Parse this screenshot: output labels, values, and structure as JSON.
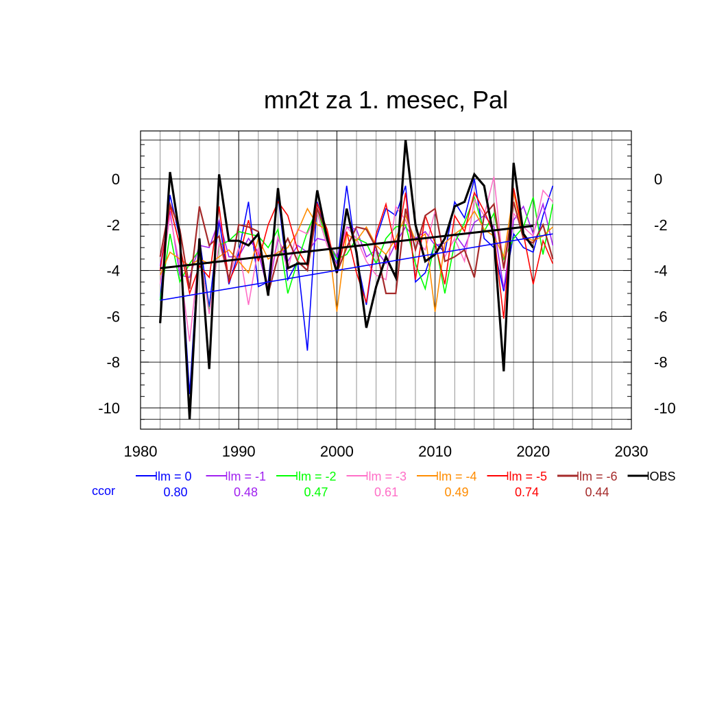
{
  "chart_data": {
    "type": "line",
    "title": "mn2t za 1. mesec, Pal",
    "xlabel": "",
    "ylabel": "",
    "xlim": [
      1980,
      2030
    ],
    "ylim": [
      -10.6,
      1.7
    ],
    "xticks": [
      1980,
      1990,
      2000,
      2010,
      2020,
      2030
    ],
    "yticks": [
      0,
      -2,
      -4,
      -6,
      -8,
      -10
    ],
    "grid": true,
    "ccor_label": "ccor",
    "series": [
      {
        "name": "lm = 0",
        "color": "#0000ff",
        "ccor": "0.80",
        "width": 1.6,
        "x": [
          1982,
          1983,
          1984,
          1985,
          1986,
          1987,
          1988,
          1989,
          1990,
          1991,
          1992,
          1993,
          1994,
          1995,
          1996,
          1997,
          1998,
          1999,
          2000,
          2001,
          2002,
          2003,
          2004,
          2005,
          2006,
          2007,
          2008,
          2009,
          2010,
          2011,
          2012,
          2013,
          2014,
          2015,
          2016,
          2017,
          2018,
          2019,
          2020,
          2021,
          2022
        ],
        "y": [
          -5.3,
          -0.7,
          -2.6,
          -9.4,
          -2.6,
          -5.6,
          -1.8,
          -4.6,
          -3.2,
          -1.0,
          -4.7,
          -4.5,
          -0.7,
          -4.4,
          -3.6,
          -7.5,
          -1.0,
          -2.5,
          -3.8,
          -0.3,
          -3.4,
          -5.5,
          -2.6,
          -1.3,
          -1.6,
          -0.3,
          -4.5,
          -4.1,
          -2.8,
          -3.2,
          -1.0,
          -1.7,
          -0.0,
          -2.6,
          -3.0,
          -4.9,
          -2.4,
          -3.0,
          -3.2,
          -1.6,
          -0.3
        ]
      },
      {
        "name": "lm = -1",
        "color": "#a020f0",
        "ccor": "0.48",
        "width": 1.6,
        "x": [
          1982,
          1983,
          1984,
          1985,
          1986,
          1987,
          1988,
          1989,
          1990,
          1991,
          1992,
          1993,
          1994,
          1995,
          1996,
          1997,
          1998,
          1999,
          2000,
          2001,
          2002,
          2003,
          2004,
          2005,
          2006,
          2007,
          2008,
          2009,
          2010,
          2011,
          2012,
          2013,
          2014,
          2015,
          2016,
          2017,
          2018,
          2019,
          2020,
          2021,
          2022
        ],
        "y": [
          -3.8,
          -1.4,
          -4.2,
          -4.3,
          -2.9,
          -3.0,
          -1.8,
          -3.4,
          -3.4,
          -2.6,
          -3.2,
          -4.9,
          -2.6,
          -3.6,
          -2.9,
          -3.2,
          -2.6,
          -2.7,
          -3.4,
          -2.1,
          -2.2,
          -3.4,
          -3.1,
          -3.7,
          -2.8,
          -2.1,
          -2.6,
          -2.3,
          -2.9,
          -2.8,
          -2.4,
          -3.0,
          -1.9,
          -1.6,
          -2.1,
          -4.8,
          -1.8,
          -1.2,
          -2.4,
          -1.1,
          -2.9
        ]
      },
      {
        "name": "lm = -2",
        "color": "#00ff00",
        "ccor": "0.47",
        "width": 1.6,
        "x": [
          1982,
          1983,
          1984,
          1985,
          1986,
          1987,
          1988,
          1989,
          1990,
          1991,
          1992,
          1993,
          1994,
          1995,
          1996,
          1997,
          1998,
          1999,
          2000,
          2001,
          2002,
          2003,
          2004,
          2005,
          2006,
          2007,
          2008,
          2009,
          2010,
          2011,
          2012,
          2013,
          2014,
          2015,
          2016,
          2017,
          2018,
          2019,
          2020,
          2021,
          2022
        ],
        "y": [
          -5.3,
          -2.4,
          -4.5,
          -3.7,
          -3.1,
          -5.8,
          -2.9,
          -2.7,
          -2.3,
          -2.4,
          -2.5,
          -3.0,
          -2.2,
          -5.0,
          -3.6,
          -2.3,
          -1.3,
          -2.7,
          -3.5,
          -3.3,
          -2.6,
          -2.8,
          -3.7,
          -2.6,
          -2.1,
          -2.0,
          -3.7,
          -4.8,
          -2.7,
          -5.0,
          -2.8,
          -1.9,
          -0.8,
          -2.3,
          -1.5,
          -3.5,
          -2.6,
          -2.1,
          -0.8,
          -3.3,
          -1.1
        ]
      },
      {
        "name": "lm = -3",
        "color": "#ff6ec7",
        "ccor": "0.61",
        "width": 1.6,
        "x": [
          1982,
          1983,
          1984,
          1985,
          1986,
          1987,
          1988,
          1989,
          1990,
          1991,
          1992,
          1993,
          1994,
          1995,
          1996,
          1997,
          1998,
          1999,
          2000,
          2001,
          2002,
          2003,
          2004,
          2005,
          2006,
          2007,
          2008,
          2009,
          2010,
          2011,
          2012,
          2013,
          2014,
          2015,
          2016,
          2017,
          2018,
          2019,
          2020,
          2021,
          2022
        ],
        "y": [
          -4.6,
          -1.6,
          -3.8,
          -7.1,
          -3.1,
          -5.9,
          -2.8,
          -4.3,
          -3.0,
          -5.5,
          -3.0,
          -4.7,
          -2.5,
          -4.0,
          -2.2,
          -2.4,
          -1.5,
          -2.9,
          -3.8,
          -2.1,
          -2.6,
          -3.6,
          -4.2,
          -4.4,
          -1.2,
          -1.8,
          -2.7,
          -3.1,
          -1.4,
          -3.4,
          -2.6,
          -3.6,
          -0.9,
          -1.6,
          0.1,
          -4.0,
          -1.5,
          -2.1,
          -2.5,
          -0.5,
          -1.0
        ]
      },
      {
        "name": "lm = -4",
        "color": "#ff8c00",
        "ccor": "0.49",
        "width": 1.6,
        "x": [
          1982,
          1983,
          1984,
          1985,
          1986,
          1987,
          1988,
          1989,
          1990,
          1991,
          1992,
          1993,
          1994,
          1995,
          1996,
          1997,
          1998,
          1999,
          2000,
          2001,
          2002,
          2003,
          2004,
          2005,
          2006,
          2007,
          2008,
          2009,
          2010,
          2011,
          2012,
          2013,
          2014,
          2015,
          2016,
          2017,
          2018,
          2019,
          2020,
          2021,
          2022
        ],
        "y": [
          -4.2,
          -3.2,
          -3.5,
          -3.8,
          -3.5,
          -3.7,
          -3.4,
          -3.1,
          -3.6,
          -4.1,
          -2.6,
          -3.5,
          -3.2,
          -3.0,
          -2.3,
          -1.3,
          -2.0,
          -2.2,
          -5.8,
          -2.4,
          -2.7,
          -2.1,
          -2.9,
          -3.3,
          -2.6,
          -1.6,
          -2.7,
          -2.4,
          -5.8,
          -2.8,
          -2.4,
          -2.1,
          -1.4,
          -2.2,
          -2.5,
          -3.4,
          -0.6,
          -2.5,
          -2.7,
          -2.5,
          -2.1
        ]
      },
      {
        "name": "lm = -5",
        "color": "#ff0000",
        "ccor": "0.74",
        "width": 1.6,
        "x": [
          1982,
          1983,
          1984,
          1985,
          1986,
          1987,
          1988,
          1989,
          1990,
          1991,
          1992,
          1993,
          1994,
          1995,
          1996,
          1997,
          1998,
          1999,
          2000,
          2001,
          2002,
          2003,
          2004,
          2005,
          2006,
          2007,
          2008,
          2009,
          2010,
          2011,
          2012,
          2013,
          2014,
          2015,
          2016,
          2017,
          2018,
          2019,
          2020,
          2021,
          2022
        ],
        "y": [
          -4.0,
          -1.2,
          -2.9,
          -5.0,
          -3.8,
          -4.3,
          -1.2,
          -4.5,
          -3.5,
          -1.8,
          -3.6,
          -2.0,
          -1.0,
          -1.6,
          -3.1,
          -3.8,
          -1.1,
          -2.2,
          -4.1,
          -2.3,
          -4.1,
          -5.4,
          -2.4,
          -1.1,
          -3.1,
          -0.6,
          -4.4,
          -1.6,
          -2.8,
          -4.6,
          -1.6,
          -2.3,
          -0.6,
          -1.4,
          -2.4,
          -6.1,
          -0.4,
          -2.4,
          -4.6,
          -2.7,
          -3.7
        ]
      },
      {
        "name": "lm = -6",
        "color": "#a52a2a",
        "ccor": "0.44",
        "width": 2.2,
        "x": [
          1982,
          1983,
          1984,
          1985,
          1986,
          1987,
          1988,
          1989,
          1990,
          1991,
          1992,
          1993,
          1994,
          1995,
          1996,
          1997,
          1998,
          1999,
          2000,
          2001,
          2002,
          2003,
          2004,
          2005,
          2006,
          2007,
          2008,
          2009,
          2010,
          2011,
          2012,
          2013,
          2014,
          2015,
          2016,
          2017,
          2018,
          2019,
          2020,
          2021,
          2022
        ],
        "y": [
          -3.4,
          -1.1,
          -2.2,
          -4.8,
          -1.2,
          -2.9,
          -2.5,
          -4.4,
          -2.0,
          -2.1,
          -2.3,
          -5.0,
          -3.4,
          -2.6,
          -3.6,
          -4.0,
          -1.3,
          -2.4,
          -4.1,
          -3.0,
          -2.1,
          -2.2,
          -3.0,
          -5.0,
          -5.0,
          -1.3,
          -3.1,
          -1.6,
          -1.3,
          -3.6,
          -3.4,
          -3.1,
          -4.3,
          -1.6,
          -1.1,
          -3.9,
          -1.0,
          -2.6,
          -2.8,
          -2.0,
          -3.5
        ]
      },
      {
        "name": "OBS",
        "color": "#000000",
        "ccor": "",
        "width": 3.2,
        "x": [
          1982,
          1983,
          1984,
          1985,
          1986,
          1987,
          1988,
          1989,
          1990,
          1991,
          1992,
          1993,
          1994,
          1995,
          1996,
          1997,
          1998,
          1999,
          2000,
          2001,
          2002,
          2003,
          2004,
          2005,
          2006,
          2007,
          2008,
          2009,
          2010,
          2011,
          2012,
          2013,
          2014,
          2015,
          2016,
          2017,
          2018,
          2019,
          2020
        ],
        "y": [
          -6.3,
          0.3,
          -2.5,
          -10.5,
          -2.6,
          -8.3,
          0.2,
          -2.7,
          -2.7,
          -2.9,
          -2.4,
          -5.1,
          -0.4,
          -3.9,
          -3.7,
          -3.7,
          -0.5,
          -2.6,
          -4.1,
          -1.3,
          -3.2,
          -6.5,
          -4.7,
          -3.4,
          -4.3,
          1.7,
          -2.0,
          -3.6,
          -3.3,
          -2.6,
          -1.2,
          -1.0,
          0.2,
          -0.3,
          -2.6,
          -8.4,
          0.7,
          -2.4,
          -3.0
        ]
      }
    ],
    "trend_lines": [
      {
        "name": "lm = 0 trend",
        "color": "#0000ff",
        "width": 1.6,
        "x": [
          1982,
          2022
        ],
        "y": [
          -5.3,
          -2.4
        ]
      },
      {
        "name": "OBS trend",
        "color": "#000000",
        "width": 3.0,
        "x": [
          1982,
          2020
        ],
        "y": [
          -3.9,
          -2.05
        ]
      }
    ]
  }
}
